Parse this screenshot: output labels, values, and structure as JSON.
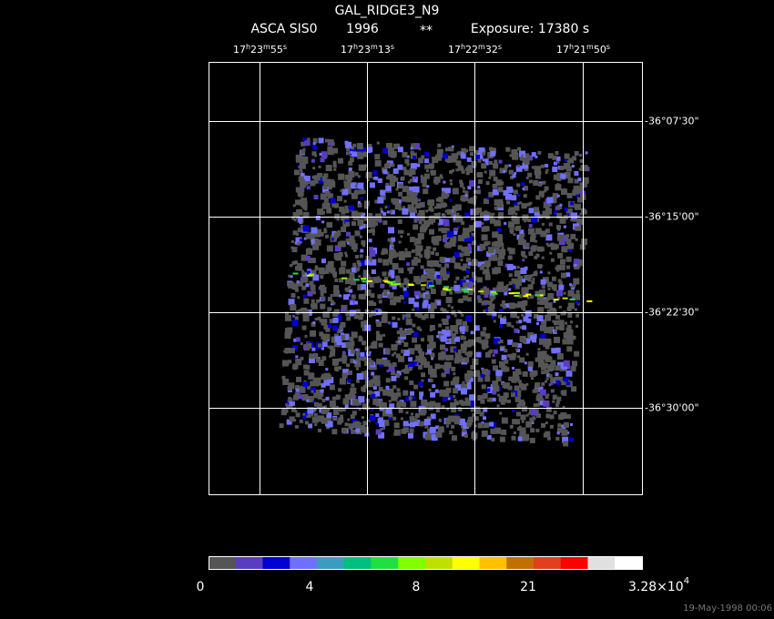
{
  "header": {
    "title": "GAL_RIDGE3_N9",
    "instrument": "ASCA SIS0",
    "year": "1996",
    "flag": "**",
    "exposure": "Exposure: 17380 s"
  },
  "ra_units": [
    "h",
    "m",
    "s"
  ],
  "ra_labels": [
    [
      "17",
      "23",
      "55"
    ],
    [
      "17",
      "23",
      "13"
    ],
    [
      "17",
      "22",
      "32"
    ],
    [
      "17",
      "21",
      "50"
    ]
  ],
  "dec_labels": [
    "-36°07'30\"",
    "-36°15'00\"",
    "-36°22'30\"",
    "-36°30'00\""
  ],
  "colorbar": {
    "colors": [
      "#555555",
      "#5a3cc0",
      "#0000d0",
      "#7070ff",
      "#3c9cc0",
      "#00c080",
      "#20e040",
      "#80ff00",
      "#c0e000",
      "#ffff00",
      "#ffc000",
      "#c07000",
      "#e04020",
      "#ff0000",
      "#e0e0e0",
      "#ffffff"
    ],
    "labels": [
      "0",
      "4",
      "8",
      "21"
    ],
    "max_label": {
      "mantissa": "3.28×10",
      "exponent": "4"
    }
  },
  "footer": {
    "date": "19-May-1998 00:06"
  }
}
